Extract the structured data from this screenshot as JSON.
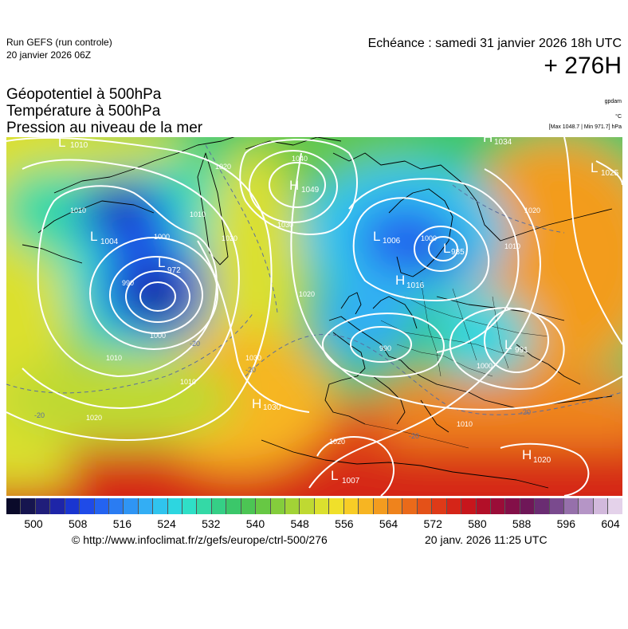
{
  "header": {
    "run_name": "Run GEFS (run controle)",
    "run_date": "20 janvier 2026 06Z",
    "valid_time": "Echéance : samedi 31 janvier 2026 18h UTC",
    "lead_time": "+ 276H"
  },
  "fields": {
    "line1": "Géopotentiel à 500hPa",
    "line2": "Température à 500hPa",
    "line3": "Pression au niveau de la mer"
  },
  "units": {
    "geopotential": "gpdam",
    "temperature": "°C",
    "extremes": "[Max 1048.7 | Min 971.7] hPa"
  },
  "map": {
    "pressure_centers": [
      {
        "type": "L",
        "value": "1010"
      },
      {
        "type": "L",
        "value": "1004"
      },
      {
        "type": "L",
        "value": "972"
      },
      {
        "type": "H",
        "value": "1049"
      },
      {
        "type": "L",
        "value": "1006"
      },
      {
        "type": "L",
        "value": "985"
      },
      {
        "type": "H",
        "value": "1016"
      },
      {
        "type": "H",
        "value": "1034"
      },
      {
        "type": "L",
        "value": "1025"
      },
      {
        "type": "L",
        "value": "991"
      },
      {
        "type": "H",
        "value": "1030"
      },
      {
        "type": "L",
        "value": "1007"
      },
      {
        "type": "H",
        "value": "1020"
      }
    ],
    "isobar_labels": [
      "1040",
      "1030",
      "1020",
      "1010",
      "1000",
      "990",
      "1010",
      "1020",
      "1000",
      "1010",
      "1020",
      "1030",
      "1020",
      "1010",
      "1000",
      "990",
      "1000",
      "1010",
      "1020",
      "1010",
      "1020"
    ],
    "isotherm_labels": [
      "-20",
      "-20",
      "-20",
      "-20",
      "-20"
    ],
    "colors": {
      "isobar": "#ffffff",
      "isotherm": "#5a6ea0",
      "coastline": "#000000"
    }
  },
  "colorbar": {
    "ticks": [
      "500",
      "508",
      "516",
      "524",
      "532",
      "540",
      "548",
      "556",
      "564",
      "572",
      "580",
      "588",
      "596",
      "604"
    ],
    "colors": [
      "#0a0a2a",
      "#16154f",
      "#201e7a",
      "#1e25a8",
      "#1a35d0",
      "#1f4be8",
      "#2463f0",
      "#2a7cf2",
      "#2f95f4",
      "#33aef4",
      "#30c4ee",
      "#2dd6e0",
      "#2fdfc7",
      "#34d9a6",
      "#35cf86",
      "#3bc76a",
      "#4cc554",
      "#67c844",
      "#84cd3c",
      "#a2d336",
      "#bfd932",
      "#dbe02e",
      "#f0e02a",
      "#f8cd26",
      "#f7b522",
      "#f39c1f",
      "#ef831c",
      "#ea6a1a",
      "#e45118",
      "#de3a18",
      "#d52518",
      "#c7161c",
      "#b20f28",
      "#9a0d38",
      "#830f48",
      "#6f1758",
      "#6a2c72",
      "#7a4a8e",
      "#9670ab",
      "#b595c6",
      "#d2b9dc",
      "#e4d2ea"
    ]
  },
  "footer": {
    "credit": "© http://www.infoclimat.fr/z/gefs/europe/ctrl-500/276",
    "stamp": "20 janv. 2026 11:25 UTC"
  }
}
